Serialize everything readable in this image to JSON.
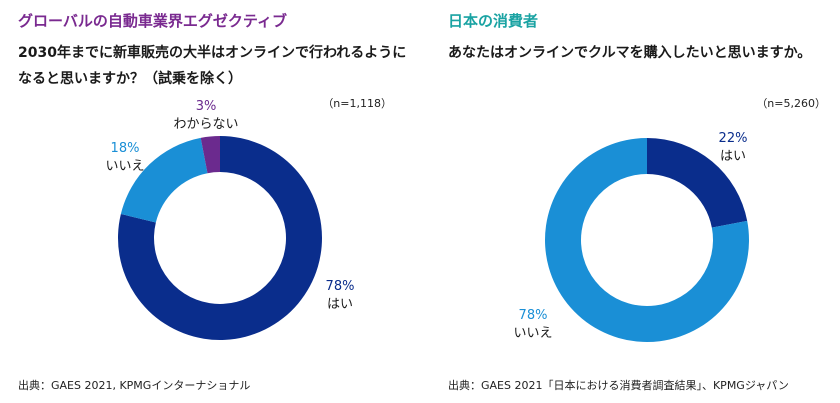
{
  "left": {
    "heading": "グローバルの自動車業界エグゼクティブ",
    "heading_color": "#7a2a90",
    "question": "2030年までに新車販売の大半はオンラインで行われるようになると思いますか？（試乗を除く）",
    "n_label": "（n=1,118）",
    "source": "出典：GAES 2021, KPMGインターナショナル"
  },
  "right": {
    "heading": "日本の消費者",
    "heading_color": "#1aa3a3",
    "question": "あなたはオンラインでクルマを購入したいと思いますか。",
    "n_label": "（n=5,260）",
    "source": "出典：GAES 2021「日本における消費者調査結果」、KPMGジャパン"
  },
  "chart_data": [
    {
      "type": "pie",
      "slices": [
        {
          "label": "はい",
          "value": 78,
          "value_label": "78%",
          "color": "#0a2d8c",
          "pct_color": "#0a2d8c"
        },
        {
          "label": "いいえ",
          "value": 18,
          "value_label": "18%",
          "color": "#1a8fd6",
          "pct_color": "#1a8fd6"
        },
        {
          "label": "わからない",
          "value": 3,
          "value_label": "3%",
          "color": "#6b2a8e",
          "pct_color": "#6b2a8e"
        }
      ]
    },
    {
      "type": "pie",
      "slices": [
        {
          "label": "はい",
          "value": 22,
          "value_label": "22%",
          "color": "#0a2d8c",
          "pct_color": "#0a2d8c"
        },
        {
          "label": "いいえ",
          "value": 78,
          "value_label": "78%",
          "color": "#1a8fd6",
          "pct_color": "#1a8fd6"
        }
      ]
    }
  ]
}
